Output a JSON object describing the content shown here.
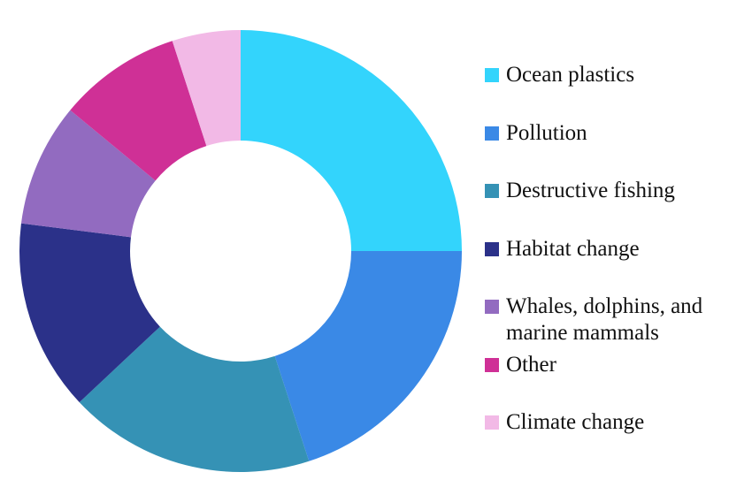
{
  "chart_data": {
    "type": "donut",
    "categories": [
      "Ocean plastics",
      "Pollution",
      "Destructive fishing",
      "Habitat change",
      "Whales, dolphins, and marine mammals",
      "Other",
      "Climate change"
    ],
    "values": [
      25,
      20,
      18,
      14,
      9,
      9,
      5
    ],
    "colors": [
      "#33d4fc",
      "#3a89e6",
      "#3592b5",
      "#2b3189",
      "#926bc0",
      "#cf3096",
      "#f2b9e6"
    ]
  }
}
